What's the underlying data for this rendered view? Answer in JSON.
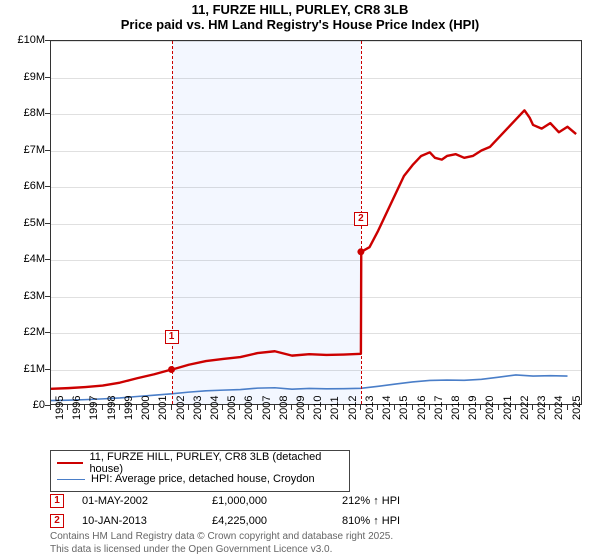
{
  "title_line1": "11, FURZE HILL, PURLEY, CR8 3LB",
  "title_line2": "Price paid vs. HM Land Registry's House Price Index (HPI)",
  "chart": {
    "type": "line",
    "background_color": "#ffffff",
    "grid_color": "rgba(0,0,0,0.12)",
    "shade_color": "rgba(100,150,255,0.08)",
    "plot_border_color": "#333333",
    "x_axis": {
      "min": 1995,
      "max": 2025.9,
      "ticks": [
        1995,
        1996,
        1997,
        1998,
        1999,
        2000,
        2001,
        2002,
        2003,
        2004,
        2005,
        2006,
        2007,
        2008,
        2009,
        2010,
        2011,
        2012,
        2013,
        2014,
        2015,
        2016,
        2017,
        2018,
        2019,
        2020,
        2021,
        2022,
        2023,
        2024,
        2025
      ],
      "tick_fontsize": 11,
      "rotation": -90
    },
    "y_axis": {
      "min": 0,
      "max": 10000000,
      "tick_step": 1000000,
      "tick_labels": [
        "£0",
        "£1M",
        "£2M",
        "£3M",
        "£4M",
        "£5M",
        "£6M",
        "£7M",
        "£8M",
        "£9M",
        "£10M"
      ],
      "tick_fontsize": 11
    },
    "series": [
      {
        "name": "11, FURZE HILL, PURLEY, CR8 3LB (detached house)",
        "color": "#cc0000",
        "line_width": 2.4,
        "points": [
          [
            1995,
            470000
          ],
          [
            1996,
            490000
          ],
          [
            1997,
            520000
          ],
          [
            1998,
            560000
          ],
          [
            1999,
            640000
          ],
          [
            2000,
            760000
          ],
          [
            2001,
            870000
          ],
          [
            2002,
            1000000
          ],
          [
            2002.05,
            1000000
          ],
          [
            2003,
            1130000
          ],
          [
            2004,
            1230000
          ],
          [
            2005,
            1290000
          ],
          [
            2006,
            1340000
          ],
          [
            2007,
            1450000
          ],
          [
            2008,
            1500000
          ],
          [
            2009,
            1380000
          ],
          [
            2010,
            1420000
          ],
          [
            2011,
            1400000
          ],
          [
            2012,
            1410000
          ],
          [
            2013,
            1430000
          ],
          [
            2013.02,
            4225000
          ],
          [
            2013.5,
            4350000
          ],
          [
            2014,
            4800000
          ],
          [
            2014.5,
            5300000
          ],
          [
            2015,
            5800000
          ],
          [
            2015.5,
            6300000
          ],
          [
            2016,
            6600000
          ],
          [
            2016.5,
            6850000
          ],
          [
            2017,
            6950000
          ],
          [
            2017.3,
            6800000
          ],
          [
            2017.7,
            6750000
          ],
          [
            2018,
            6850000
          ],
          [
            2018.5,
            6900000
          ],
          [
            2019,
            6800000
          ],
          [
            2019.5,
            6850000
          ],
          [
            2020,
            7000000
          ],
          [
            2020.5,
            7100000
          ],
          [
            2021,
            7350000
          ],
          [
            2021.5,
            7600000
          ],
          [
            2022,
            7850000
          ],
          [
            2022.5,
            8100000
          ],
          [
            2022.8,
            7900000
          ],
          [
            2023,
            7700000
          ],
          [
            2023.5,
            7600000
          ],
          [
            2024,
            7750000
          ],
          [
            2024.5,
            7500000
          ],
          [
            2025,
            7650000
          ],
          [
            2025.5,
            7450000
          ]
        ]
      },
      {
        "name": "HPI: Average price, detached house, Croydon",
        "color": "#4a7ec8",
        "line_width": 1.6,
        "points": [
          [
            1995,
            150000
          ],
          [
            1996,
            160000
          ],
          [
            1997,
            175000
          ],
          [
            1998,
            195000
          ],
          [
            1999,
            220000
          ],
          [
            2000,
            260000
          ],
          [
            2001,
            295000
          ],
          [
            2002,
            335000
          ],
          [
            2003,
            380000
          ],
          [
            2004,
            415000
          ],
          [
            2005,
            435000
          ],
          [
            2006,
            450000
          ],
          [
            2007,
            490000
          ],
          [
            2008,
            500000
          ],
          [
            2009,
            460000
          ],
          [
            2010,
            480000
          ],
          [
            2011,
            470000
          ],
          [
            2012,
            475000
          ],
          [
            2013,
            485000
          ],
          [
            2014,
            540000
          ],
          [
            2015,
            600000
          ],
          [
            2016,
            660000
          ],
          [
            2017,
            700000
          ],
          [
            2018,
            710000
          ],
          [
            2019,
            705000
          ],
          [
            2020,
            730000
          ],
          [
            2021,
            790000
          ],
          [
            2022,
            850000
          ],
          [
            2023,
            820000
          ],
          [
            2024,
            830000
          ],
          [
            2025,
            820000
          ]
        ]
      }
    ],
    "shaded_region_x": [
      2002,
      2013
    ],
    "sale_markers": [
      {
        "num": "1",
        "x": 2002,
        "y": 1000000
      },
      {
        "num": "2",
        "x": 2013,
        "y": 4225000
      }
    ]
  },
  "legend": {
    "items": [
      {
        "label": "11, FURZE HILL, PURLEY, CR8 3LB (detached house)",
        "color": "#cc0000",
        "width": 2.5
      },
      {
        "label": "HPI: Average price, detached house, Croydon",
        "color": "#4a7ec8",
        "width": 1.6
      }
    ]
  },
  "sales_table": [
    {
      "num": "1",
      "date": "01-MAY-2002",
      "price": "£1,000,000",
      "pct": "212% ↑ HPI"
    },
    {
      "num": "2",
      "date": "10-JAN-2013",
      "price": "£4,225,000",
      "pct": "810% ↑ HPI"
    }
  ],
  "footer_line1": "Contains HM Land Registry data © Crown copyright and database right 2025.",
  "footer_line2": "This data is licensed under the Open Government Licence v3.0."
}
